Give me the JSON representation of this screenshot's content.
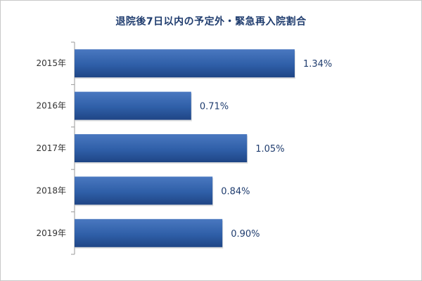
{
  "chart_data": {
    "type": "bar",
    "orientation": "horizontal",
    "title": "退院後7日以内の予定外・緊急再入院割合",
    "categories": [
      "2015年",
      "2016年",
      "2017年",
      "2018年",
      "2019年"
    ],
    "values": [
      1.34,
      0.71,
      1.05,
      0.84,
      0.9
    ],
    "data_labels": [
      "1.34%",
      "0.71%",
      "1.05%",
      "0.84%",
      "0.90%"
    ],
    "unit": "%",
    "xlim": [
      0,
      1.4
    ],
    "grid": false,
    "legend": "none",
    "bar_color": "#2f5fa8",
    "bar_color_dark": "#1f4585",
    "axis_color": "#9a9a9a",
    "label_color": "#1f3c6e"
  }
}
